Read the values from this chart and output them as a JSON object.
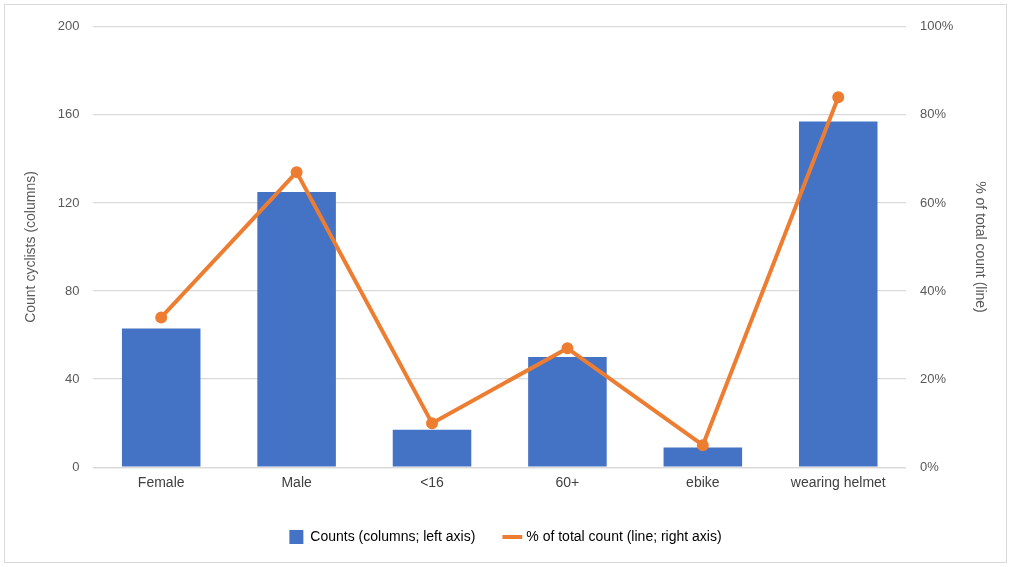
{
  "chart_data": {
    "type": "bar",
    "categories": [
      "Female",
      "Male",
      "<16",
      "60+",
      "ebike",
      "wearing helmet"
    ],
    "series": [
      {
        "name": "Counts (columns; left axis)",
        "color": "#4472c4",
        "values": [
          63,
          125,
          17,
          50,
          9,
          157
        ]
      },
      {
        "name": "% of total count (line; right axis)",
        "type": "line",
        "axis": "y2",
        "color": "#ed7d31",
        "values": [
          34,
          67,
          10,
          27,
          5,
          84
        ]
      }
    ],
    "ylabel": "Count cyclists (columns)",
    "y2label": "% of total count (line)",
    "ylim": [
      0,
      200
    ],
    "yticks": [
      0,
      40,
      80,
      120,
      160,
      200
    ],
    "y2lim": [
      0,
      100
    ],
    "y2ticks": [
      {
        "value": 0,
        "label": "0%"
      },
      {
        "value": 20,
        "label": "20%"
      },
      {
        "value": 40,
        "label": "40%"
      },
      {
        "value": 60,
        "label": "60%"
      },
      {
        "value": 80,
        "label": "80%"
      },
      {
        "value": 100,
        "label": "100%"
      }
    ],
    "grid": "y",
    "legend": "bottom",
    "marker": "circle",
    "line_style": "solid"
  }
}
